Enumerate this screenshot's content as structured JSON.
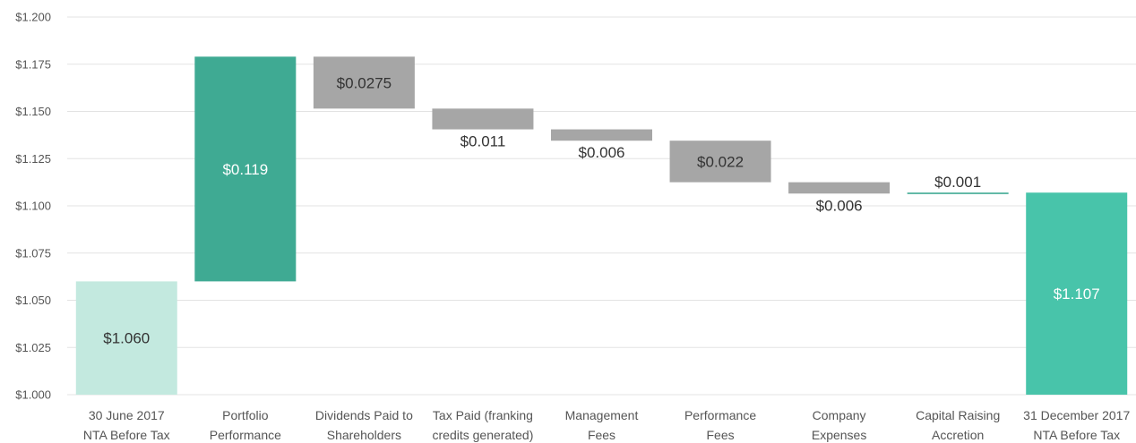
{
  "chart_data": {
    "type": "bar",
    "subtype": "waterfall",
    "categories": [
      [
        "30 June 2017",
        "NTA Before Tax"
      ],
      [
        "Portfolio",
        "Performance"
      ],
      [
        "Dividends Paid to",
        "Shareholders"
      ],
      [
        "Tax Paid (franking",
        "credits generated)"
      ],
      [
        "Management",
        "Fees"
      ],
      [
        "Performance",
        "Fees"
      ],
      [
        "Company",
        "Expenses"
      ],
      [
        "Capital Raising",
        "Accretion"
      ],
      [
        "31 December 2017",
        "NTA Before Tax"
      ]
    ],
    "bars": [
      {
        "low": 1.0,
        "high": 1.06,
        "label": "$1.060",
        "color": "#c3e9df",
        "label_color": "#333333"
      },
      {
        "low": 1.06,
        "high": 1.179,
        "label": "$0.119",
        "color": "#3faa93",
        "label_color": "#ffffff"
      },
      {
        "low": 1.1515,
        "high": 1.179,
        "label": "$0.0275",
        "color": "#a6a6a6",
        "label_color": "#333333"
      },
      {
        "low": 1.1405,
        "high": 1.1515,
        "label": "$0.011",
        "color": "#a6a6a6",
        "label_color": "#333333"
      },
      {
        "low": 1.1345,
        "high": 1.1405,
        "label": "$0.006",
        "color": "#a6a6a6",
        "label_color": "#333333"
      },
      {
        "low": 1.1125,
        "high": 1.1345,
        "label": "$0.022",
        "color": "#a6a6a6",
        "label_color": "#333333"
      },
      {
        "low": 1.1065,
        "high": 1.1125,
        "label": "$0.006",
        "color": "#a6a6a6",
        "label_color": "#333333"
      },
      {
        "low": 1.1065,
        "high": 1.107,
        "label": "$0.001",
        "color": "#3faa93",
        "label_color": "#333333"
      },
      {
        "low": 1.0,
        "high": 1.107,
        "label": "$1.107",
        "color": "#48c4aa",
        "label_color": "#ffffff"
      }
    ],
    "yticks": [
      "$1.000",
      "$1.025",
      "$1.050",
      "$1.075",
      "$1.100",
      "$1.125",
      "$1.150",
      "$1.175",
      "$1.200"
    ],
    "ylim": [
      1.0,
      1.2
    ],
    "grid": true
  }
}
